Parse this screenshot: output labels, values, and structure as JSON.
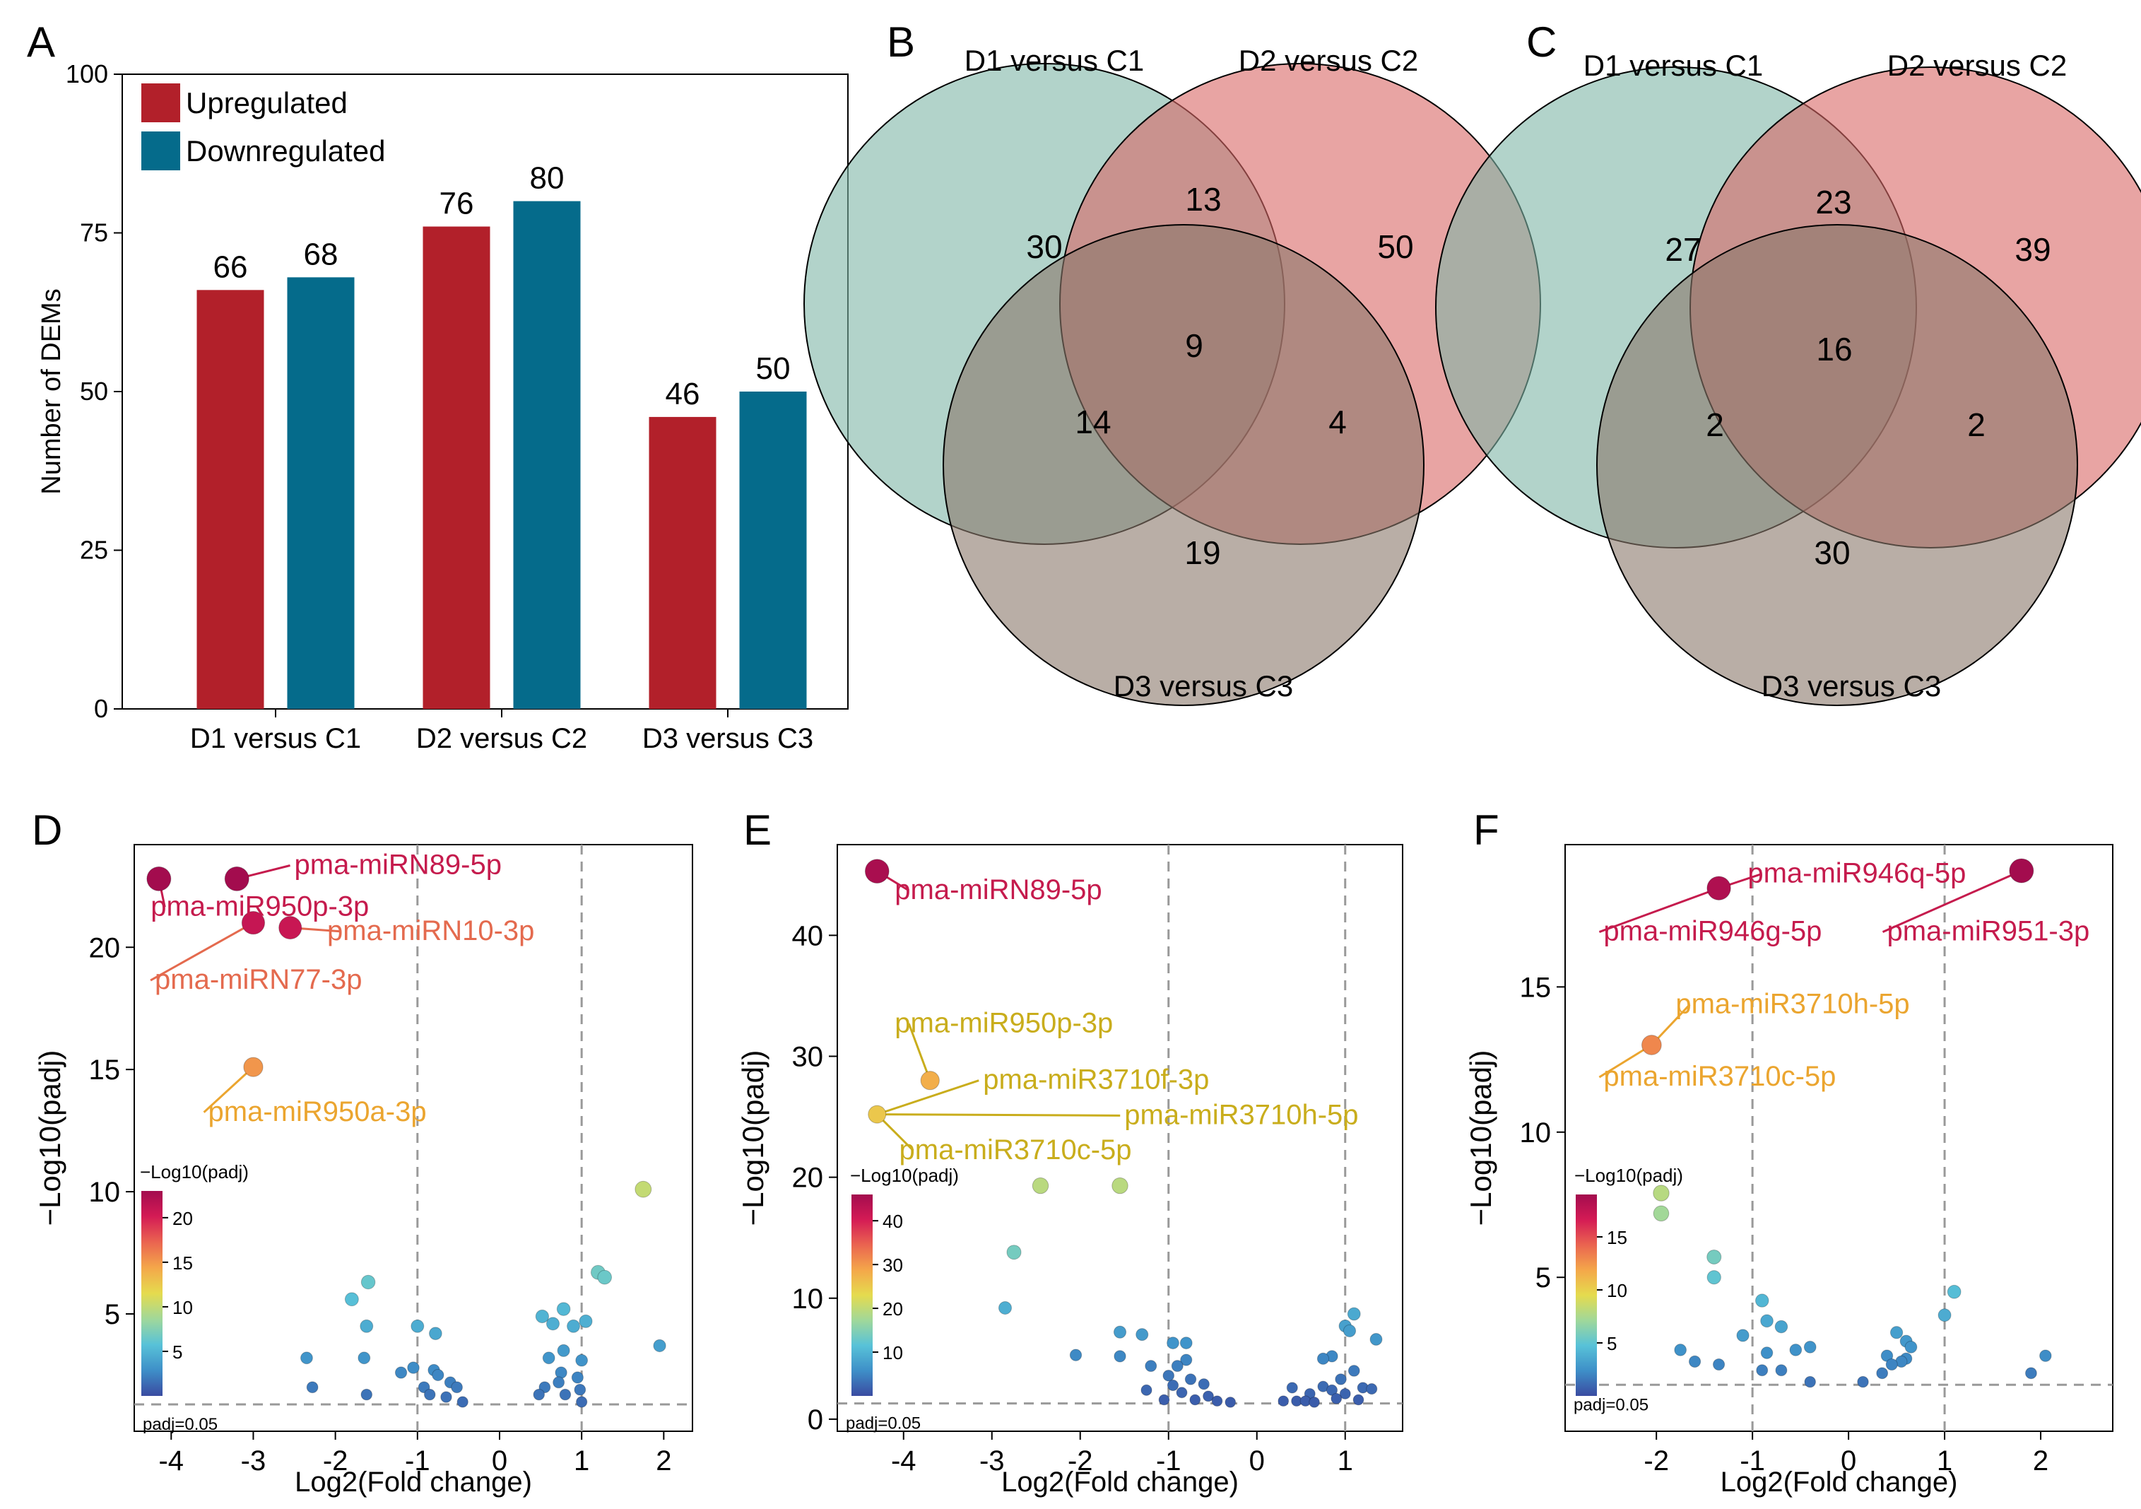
{
  "figure": {
    "panels": [
      {
        "id": "A",
        "letter": "A"
      },
      {
        "id": "B",
        "letter": "B"
      },
      {
        "id": "C",
        "letter": "C"
      },
      {
        "id": "D",
        "letter": "D"
      },
      {
        "id": "E",
        "letter": "E"
      },
      {
        "id": "F",
        "letter": "F"
      }
    ]
  },
  "colors": {
    "upregulated": "#b2202a",
    "downregulated": "#056b8b",
    "venn_d1": "#7fb5a6",
    "venn_d2": "#d86866",
    "venn_d3": "#8a786a",
    "guide_line": "#999999",
    "label_high": "#c51b4d",
    "label_mid": "#e46a4e",
    "label_orange": "#eba52f",
    "label_yellow": "#c9ad1c"
  },
  "chart_data": [
    {
      "panel": "A",
      "type": "bar",
      "title": "",
      "xlabel": "",
      "ylabel": "Number of DEMs",
      "categories": [
        "D1 versus C1",
        "D2 versus C2",
        "D3 versus C3"
      ],
      "series": [
        {
          "name": "Upregulated",
          "values": [
            66,
            76,
            46
          ]
        },
        {
          "name": "Downregulated",
          "values": [
            68,
            80,
            50
          ]
        }
      ],
      "data_labels": [
        [
          "66",
          "76",
          "46"
        ],
        [
          "68",
          "80",
          "50"
        ]
      ],
      "ylim": [
        0,
        100
      ],
      "yticks": [
        0,
        25,
        50,
        75,
        100
      ],
      "legend": "top-left"
    },
    {
      "panel": "B",
      "type": "venn",
      "sets": [
        "D1 versus C1",
        "D2 versus C2",
        "D3 versus C3"
      ],
      "regions": {
        "only_1": 30,
        "only_2": 50,
        "only_3": 19,
        "set_1_2": 13,
        "set_1_3": 14,
        "set_2_3": 4,
        "all": 9
      }
    },
    {
      "panel": "C",
      "type": "venn",
      "sets": [
        "D1 versus C1",
        "D2 versus C2",
        "D3 versus C3"
      ],
      "regions": {
        "only_1": 27,
        "only_2": 39,
        "only_3": 30,
        "set_1_2": 23,
        "set_1_3": 2,
        "set_2_3": 2,
        "all": 16
      }
    },
    {
      "panel": "D",
      "type": "scatter",
      "xlabel": "Log2(Fold change)",
      "ylabel": "−Log10(padj)",
      "xlim": [
        -4.45,
        2.35
      ],
      "ylim": [
        0.2,
        24.2
      ],
      "xticks": [
        -4,
        -3,
        -2,
        -1,
        0,
        1,
        2
      ],
      "yticks": [
        5,
        10,
        15,
        20
      ],
      "vlines": [
        -1,
        1
      ],
      "threshold": 1.3,
      "threshold_label": "padj=0.05",
      "colorbar": {
        "title": "−Log10(padj)",
        "ticks": [
          5,
          10,
          15,
          20
        ],
        "max": 23
      },
      "points": [
        {
          "x": -4.15,
          "y": 22.8,
          "c": 23
        },
        {
          "x": -3.2,
          "y": 22.8,
          "c": 23
        },
        {
          "x": -3.0,
          "y": 21.0,
          "c": 21
        },
        {
          "x": -2.55,
          "y": 20.8,
          "c": 20.8
        },
        {
          "x": -3.0,
          "y": 15.1,
          "c": 15.1
        },
        {
          "x": 1.75,
          "y": 10.1,
          "c": 10.1
        },
        {
          "x": 1.2,
          "y": 6.7,
          "c": 6.7
        },
        {
          "x": 1.28,
          "y": 6.5,
          "c": 6.5
        },
        {
          "x": -1.6,
          "y": 6.3,
          "c": 6.3
        },
        {
          "x": -1.8,
          "y": 5.6,
          "c": 5.6
        },
        {
          "x": 0.78,
          "y": 5.2,
          "c": 5.2
        },
        {
          "x": 0.52,
          "y": 4.9,
          "c": 4.9
        },
        {
          "x": 1.05,
          "y": 4.7,
          "c": 4.7
        },
        {
          "x": -1.62,
          "y": 4.5,
          "c": 4.5
        },
        {
          "x": 0.65,
          "y": 4.6,
          "c": 4.6
        },
        {
          "x": 0.9,
          "y": 4.5,
          "c": 4.5
        },
        {
          "x": -1.0,
          "y": 4.5,
          "c": 4.5
        },
        {
          "x": -0.78,
          "y": 4.2,
          "c": 4.2
        },
        {
          "x": 1.95,
          "y": 3.7,
          "c": 3.7
        },
        {
          "x": 0.78,
          "y": 3.5,
          "c": 3.5
        },
        {
          "x": -1.65,
          "y": 3.2,
          "c": 3.2
        },
        {
          "x": -2.35,
          "y": 3.2,
          "c": 3.2
        },
        {
          "x": 0.6,
          "y": 3.2,
          "c": 3.2
        },
        {
          "x": 1.0,
          "y": 3.1,
          "c": 3.1
        },
        {
          "x": -1.05,
          "y": 2.8,
          "c": 2.8
        },
        {
          "x": -0.8,
          "y": 2.7,
          "c": 2.7
        },
        {
          "x": 0.75,
          "y": 2.6,
          "c": 2.6
        },
        {
          "x": -0.75,
          "y": 2.5,
          "c": 2.5
        },
        {
          "x": -1.2,
          "y": 2.6,
          "c": 2.6
        },
        {
          "x": 0.95,
          "y": 2.4,
          "c": 2.4
        },
        {
          "x": 0.72,
          "y": 2.2,
          "c": 2.2
        },
        {
          "x": -0.6,
          "y": 2.2,
          "c": 2.2
        },
        {
          "x": -2.28,
          "y": 2.0,
          "c": 2.0
        },
        {
          "x": -0.92,
          "y": 2.0,
          "c": 2.0
        },
        {
          "x": -0.52,
          "y": 2.0,
          "c": 2.0
        },
        {
          "x": 0.55,
          "y": 2.0,
          "c": 2.0
        },
        {
          "x": 0.98,
          "y": 1.9,
          "c": 1.9
        },
        {
          "x": -1.62,
          "y": 1.7,
          "c": 1.7
        },
        {
          "x": -0.85,
          "y": 1.7,
          "c": 1.7
        },
        {
          "x": 0.48,
          "y": 1.7,
          "c": 1.7
        },
        {
          "x": -0.65,
          "y": 1.6,
          "c": 1.6
        },
        {
          "x": 0.8,
          "y": 1.7,
          "c": 1.7
        },
        {
          "x": -0.45,
          "y": 1.4,
          "c": 1.4
        },
        {
          "x": 1.0,
          "y": 1.4,
          "c": 1.4
        }
      ],
      "annotations": [
        {
          "text": "pma-miRN89-5p",
          "x": -3.2,
          "y": 22.8,
          "tx": -2.5,
          "ty": 23.0,
          "color": "label_high",
          "anchor": "start"
        },
        {
          "text": "pma-miR950p-3p",
          "x": -4.15,
          "y": 22.8,
          "tx": -4.25,
          "ty": 21.3,
          "color": "label_high",
          "anchor": "start"
        },
        {
          "text": "pma-miRN10-3p",
          "x": -2.55,
          "y": 20.8,
          "tx": -2.1,
          "ty": 20.3,
          "color": "label_mid",
          "anchor": "start"
        },
        {
          "text": "pma-miRN77-3p",
          "x": -3.0,
          "y": 21.0,
          "tx": -4.2,
          "ty": 18.3,
          "color": "label_mid",
          "anchor": "start"
        },
        {
          "text": "pma-miR950a-3p",
          "x": -3.0,
          "y": 15.1,
          "tx": -3.55,
          "ty": 12.9,
          "color": "label_orange",
          "anchor": "start"
        }
      ]
    },
    {
      "panel": "E",
      "type": "scatter",
      "xlabel": "Log2(Fold change)",
      "ylabel": "−Log10(padj)",
      "xlim": [
        -4.75,
        1.65
      ],
      "ylim": [
        -1.0,
        47.5
      ],
      "xticks": [
        -4,
        -3,
        -2,
        -1,
        0,
        1
      ],
      "yticks": [
        0,
        10,
        20,
        30,
        40
      ],
      "vlines": [
        -1,
        1
      ],
      "threshold": 1.3,
      "threshold_label": "padj=0.05",
      "colorbar": {
        "title": "−Log10(padj)",
        "ticks": [
          10,
          20,
          30,
          40
        ],
        "max": 46
      },
      "points": [
        {
          "x": -4.3,
          "y": 45.3,
          "c": 45.3
        },
        {
          "x": -3.7,
          "y": 28.0,
          "c": 28.0
        },
        {
          "x": -4.3,
          "y": 25.2,
          "c": 25.2
        },
        {
          "x": -2.45,
          "y": 19.3,
          "c": 19.3
        },
        {
          "x": -1.55,
          "y": 19.3,
          "c": 19.3
        },
        {
          "x": -2.75,
          "y": 13.8,
          "c": 13.8
        },
        {
          "x": -2.85,
          "y": 9.2,
          "c": 9.2
        },
        {
          "x": 1.1,
          "y": 8.7,
          "c": 8.7
        },
        {
          "x": 1.0,
          "y": 7.7,
          "c": 7.7
        },
        {
          "x": 1.05,
          "y": 7.3,
          "c": 7.3
        },
        {
          "x": -1.55,
          "y": 7.2,
          "c": 7.2
        },
        {
          "x": -1.3,
          "y": 7.0,
          "c": 7.0
        },
        {
          "x": 1.35,
          "y": 6.6,
          "c": 6.6
        },
        {
          "x": -0.95,
          "y": 6.3,
          "c": 6.3
        },
        {
          "x": -0.8,
          "y": 6.3,
          "c": 6.3
        },
        {
          "x": -2.05,
          "y": 5.3,
          "c": 5.3
        },
        {
          "x": -1.55,
          "y": 5.2,
          "c": 5.2
        },
        {
          "x": 0.85,
          "y": 5.2,
          "c": 5.2
        },
        {
          "x": 0.75,
          "y": 5.0,
          "c": 5.0
        },
        {
          "x": -0.8,
          "y": 4.9,
          "c": 4.9
        },
        {
          "x": -1.2,
          "y": 4.4,
          "c": 4.4
        },
        {
          "x": -0.9,
          "y": 4.4,
          "c": 4.4
        },
        {
          "x": 1.1,
          "y": 4.0,
          "c": 4.0
        },
        {
          "x": -1.0,
          "y": 3.6,
          "c": 3.6
        },
        {
          "x": -0.75,
          "y": 3.3,
          "c": 3.3
        },
        {
          "x": 0.95,
          "y": 3.3,
          "c": 3.3
        },
        {
          "x": -0.95,
          "y": 2.8,
          "c": 2.8
        },
        {
          "x": -0.6,
          "y": 2.9,
          "c": 2.9
        },
        {
          "x": 0.75,
          "y": 2.7,
          "c": 2.7
        },
        {
          "x": 1.2,
          "y": 2.6,
          "c": 2.6
        },
        {
          "x": -1.25,
          "y": 2.4,
          "c": 2.4
        },
        {
          "x": 0.4,
          "y": 2.6,
          "c": 2.6
        },
        {
          "x": 0.85,
          "y": 2.4,
          "c": 2.4
        },
        {
          "x": 1.3,
          "y": 2.5,
          "c": 2.5
        },
        {
          "x": -0.85,
          "y": 2.2,
          "c": 2.2
        },
        {
          "x": 0.6,
          "y": 2.1,
          "c": 2.1
        },
        {
          "x": -0.55,
          "y": 1.9,
          "c": 1.9
        },
        {
          "x": 1.0,
          "y": 2.1,
          "c": 2.1
        },
        {
          "x": -1.05,
          "y": 1.6,
          "c": 1.6
        },
        {
          "x": -0.7,
          "y": 1.6,
          "c": 1.6
        },
        {
          "x": -0.45,
          "y": 1.5,
          "c": 1.5
        },
        {
          "x": -0.3,
          "y": 1.4,
          "c": 1.4
        },
        {
          "x": 0.3,
          "y": 1.5,
          "c": 1.5
        },
        {
          "x": 0.45,
          "y": 1.5,
          "c": 1.5
        },
        {
          "x": 0.55,
          "y": 1.5,
          "c": 1.5
        },
        {
          "x": 0.65,
          "y": 1.4,
          "c": 1.4
        },
        {
          "x": 0.9,
          "y": 1.7,
          "c": 1.7
        },
        {
          "x": 1.15,
          "y": 1.6,
          "c": 1.6
        }
      ],
      "annotations": [
        {
          "text": "pma-miRN89-5p",
          "x": -4.3,
          "y": 45.3,
          "tx": -4.1,
          "ty": 43.0,
          "color": "label_high",
          "anchor": "start"
        },
        {
          "text": "pma-miR950p-3p",
          "x": -3.7,
          "y": 28.0,
          "tx": -4.1,
          "ty": 32.0,
          "color": "label_yellow",
          "anchor": "start"
        },
        {
          "text": "pma-miR3710f-3p",
          "x": -4.3,
          "y": 25.2,
          "tx": -3.1,
          "ty": 27.3,
          "color": "label_yellow",
          "anchor": "start"
        },
        {
          "text": "pma-miR3710h-5p",
          "x": -4.3,
          "y": 25.2,
          "tx": -1.5,
          "ty": 24.4,
          "color": "label_yellow",
          "anchor": "start"
        },
        {
          "text": "pma-miR3710c-5p",
          "x": -4.3,
          "y": 25.2,
          "tx": -4.05,
          "ty": 21.5,
          "color": "label_yellow",
          "anchor": "start"
        }
      ]
    },
    {
      "panel": "F",
      "type": "scatter",
      "xlabel": "Log2(Fold change)",
      "ylabel": "−Log10(padj)",
      "xlim": [
        -2.95,
        2.75
      ],
      "ylim": [
        -0.3,
        19.9
      ],
      "xticks": [
        -2,
        -1,
        0,
        1,
        2
      ],
      "yticks": [
        5,
        10,
        15
      ],
      "vlines": [
        -1,
        1
      ],
      "threshold": 1.3,
      "threshold_label": "padj=0.05",
      "colorbar": {
        "title": "−Log10(padj)",
        "ticks": [
          5,
          10,
          15
        ],
        "max": 19
      },
      "points": [
        {
          "x": 1.8,
          "y": 19.0,
          "c": 19.0
        },
        {
          "x": -1.35,
          "y": 18.4,
          "c": 18.4
        },
        {
          "x": -2.05,
          "y": 13.0,
          "c": 13.0
        },
        {
          "x": -1.95,
          "y": 7.9,
          "c": 7.9
        },
        {
          "x": -1.95,
          "y": 7.2,
          "c": 7.2
        },
        {
          "x": -1.4,
          "y": 5.7,
          "c": 5.7
        },
        {
          "x": -1.4,
          "y": 5.0,
          "c": 5.0
        },
        {
          "x": 1.1,
          "y": 4.5,
          "c": 4.5
        },
        {
          "x": -0.9,
          "y": 4.2,
          "c": 4.2
        },
        {
          "x": 1.0,
          "y": 3.7,
          "c": 3.7
        },
        {
          "x": -0.85,
          "y": 3.5,
          "c": 3.5
        },
        {
          "x": -0.7,
          "y": 3.3,
          "c": 3.3
        },
        {
          "x": 0.5,
          "y": 3.1,
          "c": 3.1
        },
        {
          "x": -1.1,
          "y": 3.0,
          "c": 3.0
        },
        {
          "x": 0.6,
          "y": 2.8,
          "c": 2.8
        },
        {
          "x": 0.65,
          "y": 2.6,
          "c": 2.6
        },
        {
          "x": -0.4,
          "y": 2.6,
          "c": 2.6
        },
        {
          "x": -1.75,
          "y": 2.5,
          "c": 2.5
        },
        {
          "x": -0.55,
          "y": 2.5,
          "c": 2.5
        },
        {
          "x": -0.85,
          "y": 2.4,
          "c": 2.4
        },
        {
          "x": 0.4,
          "y": 2.3,
          "c": 2.3
        },
        {
          "x": 0.6,
          "y": 2.2,
          "c": 2.2
        },
        {
          "x": 0.55,
          "y": 2.1,
          "c": 2.1
        },
        {
          "x": 2.05,
          "y": 2.3,
          "c": 2.3
        },
        {
          "x": -1.6,
          "y": 2.1,
          "c": 2.1
        },
        {
          "x": -1.35,
          "y": 2.0,
          "c": 2.0
        },
        {
          "x": 0.45,
          "y": 2.0,
          "c": 2.0
        },
        {
          "x": -0.9,
          "y": 1.8,
          "c": 1.8
        },
        {
          "x": -0.7,
          "y": 1.8,
          "c": 1.8
        },
        {
          "x": 1.9,
          "y": 1.7,
          "c": 1.7
        },
        {
          "x": 0.35,
          "y": 1.7,
          "c": 1.7
        },
        {
          "x": 0.15,
          "y": 1.4,
          "c": 1.4
        },
        {
          "x": -0.4,
          "y": 1.4,
          "c": 1.4
        }
      ],
      "annotations": [
        {
          "text": "pma-miR946q-5p",
          "x": -1.35,
          "y": 18.4,
          "tx": -1.05,
          "ty": 18.6,
          "color": "label_high",
          "anchor": "start"
        },
        {
          "text": "pma-miR946g-5p",
          "x": -1.35,
          "y": 18.4,
          "tx": -2.55,
          "ty": 16.6,
          "color": "label_high",
          "anchor": "start"
        },
        {
          "text": "pma-miR951-3p",
          "x": 1.8,
          "y": 19.0,
          "tx": 0.4,
          "ty": 16.6,
          "color": "label_high",
          "anchor": "start"
        },
        {
          "text": "pma-miR3710h-5p",
          "x": -2.05,
          "y": 13.0,
          "tx": -1.8,
          "ty": 14.1,
          "color": "label_orange",
          "anchor": "start"
        },
        {
          "text": "pma-miR3710c-5p",
          "x": -2.05,
          "y": 13.0,
          "tx": -2.55,
          "ty": 11.6,
          "color": "label_orange",
          "anchor": "start"
        }
      ]
    }
  ]
}
